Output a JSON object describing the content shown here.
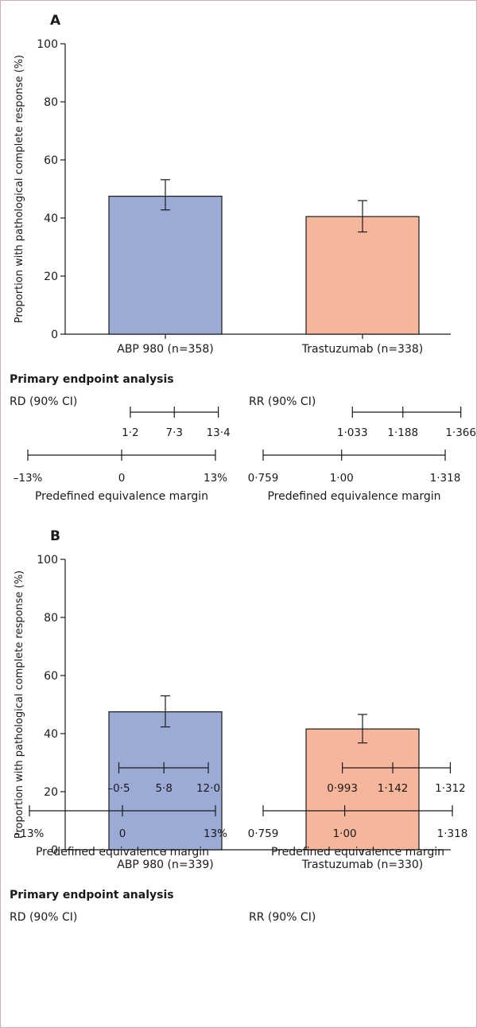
{
  "chart_data": [
    {
      "panel_label": "A",
      "type": "bar",
      "ylabel": "Proportion with pathological complete response (%)",
      "ylim": [
        0,
        100
      ],
      "yticks": [
        0,
        20,
        40,
        60,
        80,
        100
      ],
      "categories": [
        "ABP 980 (n=358)",
        "Trastuzumab (n=338)"
      ],
      "values": [
        47.5,
        40.5
      ],
      "error_low": [
        42.8,
        35.2
      ],
      "error_high": [
        53.2,
        46.0
      ],
      "bar_colors": [
        "#9caad6",
        "#f6b69b"
      ],
      "analysis_title": "Primary endpoint analysis",
      "forest_plots": [
        {
          "label": "RD (90% CI)",
          "range": [
            -13,
            13
          ],
          "ci": [
            1.2,
            7.3,
            13.4
          ],
          "ci_labels": [
            "1·2",
            "7·3",
            "13·4"
          ],
          "margin": [
            -13,
            0,
            13
          ],
          "margin_labels": [
            "–13%",
            "0",
            "13%"
          ],
          "margin_caption": "Predefined equivalence margin"
        },
        {
          "label": "RR (90% CI)",
          "range": [
            0.759,
            1.318
          ],
          "ci": [
            1.033,
            1.188,
            1.366
          ],
          "ci_labels": [
            "1·033",
            "1·188",
            "1·366"
          ],
          "margin": [
            0.759,
            1.0,
            1.318
          ],
          "margin_labels": [
            "0·759",
            "1·00",
            "1·318"
          ],
          "margin_caption": "Predefined equivalence margin"
        }
      ]
    },
    {
      "panel_label": "B",
      "type": "bar",
      "ylabel": "Proportion with pathological complete response (%)",
      "ylim": [
        0,
        100
      ],
      "yticks": [
        0,
        20,
        40,
        60,
        80,
        100
      ],
      "categories": [
        "ABP 980 (n=339)",
        "Trastuzumab (n=330)"
      ],
      "values": [
        47.5,
        41.6
      ],
      "error_low": [
        42.3,
        36.8
      ],
      "error_high": [
        53.0,
        46.6
      ],
      "bar_colors": [
        "#9caad6",
        "#f6b69b"
      ],
      "analysis_title": "Primary endpoint analysis",
      "forest_plots": [
        {
          "label": "RD (90% CI)",
          "range": [
            -13,
            13
          ],
          "ci": [
            -0.5,
            5.8,
            12.0
          ],
          "ci_labels": [
            "–0·5",
            "5·8",
            "12·0"
          ],
          "margin": [
            -13,
            0,
            13
          ],
          "margin_labels": [
            "–13%",
            "0",
            "13%"
          ],
          "margin_caption": "Predefined equivalence margin"
        },
        {
          "label": "RR (90% CI)",
          "range": [
            0.759,
            1.318
          ],
          "ci": [
            0.993,
            1.142,
            1.312
          ],
          "ci_labels": [
            "0·993",
            "1·142",
            "1·312"
          ],
          "margin": [
            0.759,
            1.0,
            1.318
          ],
          "margin_labels": [
            "0·759",
            "1·00",
            "1·318"
          ],
          "margin_caption": "Predefined equivalence margin"
        }
      ]
    }
  ]
}
